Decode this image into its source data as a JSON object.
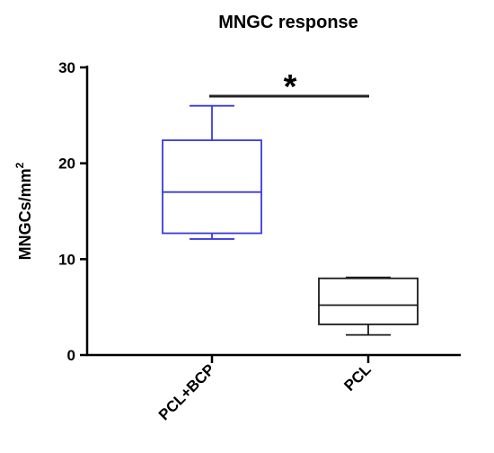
{
  "chart_data": {
    "type": "box",
    "title": "MNGC response",
    "ylabel": "MNGCs/mm",
    "ylabel_superscript": "2",
    "xlabel": "",
    "ylim": [
      0,
      30
    ],
    "yticks": [
      {
        "value": 0,
        "label": "0"
      },
      {
        "value": 10,
        "label": "10"
      },
      {
        "value": 20,
        "label": "20"
      },
      {
        "value": 30,
        "label": "30"
      }
    ],
    "grid": false,
    "categories": [
      "PCL+BCP",
      "PCL"
    ],
    "boxes": [
      {
        "category": "PCL+BCP",
        "min": 12.1,
        "q1": 12.7,
        "median": 17.0,
        "q3": 22.4,
        "max": 26.0,
        "color": "#3a3ae0"
      },
      {
        "category": "PCL",
        "min": 2.1,
        "q1": 3.2,
        "median": 5.2,
        "q3": 8.0,
        "max": 8.1,
        "color": "#1a1a1a"
      }
    ],
    "significance": {
      "from": "PCL+BCP",
      "to": "PCL",
      "y": 27.0,
      "label": "*"
    }
  }
}
